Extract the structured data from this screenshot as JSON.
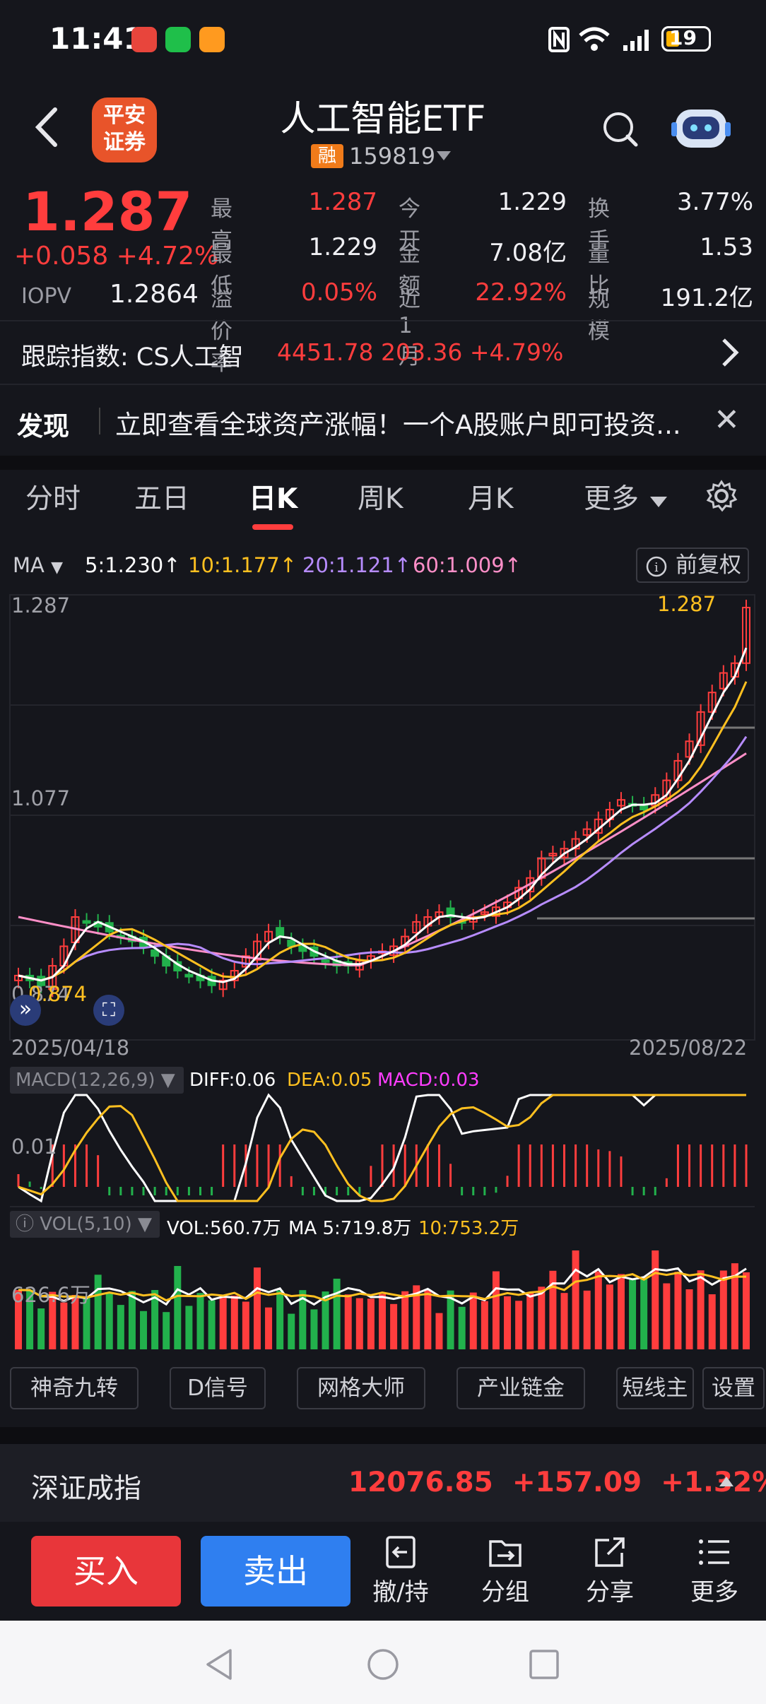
{
  "status": {
    "time": "11:41",
    "battery": "19"
  },
  "header": {
    "title": "人工智能ETF",
    "code": "159819",
    "rong": "融",
    "logo_line1": "平安",
    "logo_line2": "证券"
  },
  "quote": {
    "price": "1.287",
    "change": "+0.058",
    "change_pct": "+4.72%",
    "iopv_label": "IOPV",
    "iopv": "1.2864",
    "grid": [
      {
        "l1": "最高",
        "v1": "1.287",
        "l2": "今开",
        "v2": "1.229",
        "l3": "换手",
        "v3": "3.77%"
      },
      {
        "l1": "最低",
        "v1": "1.229",
        "l2": "金额",
        "v2": "7.08亿",
        "l3": "量比",
        "v3": "1.53"
      },
      {
        "l1": "溢价率",
        "v1": "0.05%",
        "l2": "近1月",
        "v2": "22.92%",
        "l3": "规模",
        "v3": "191.2亿"
      }
    ]
  },
  "tracking": {
    "label": "跟踪指数: CS人工智",
    "value": "4451.78  203.36  +4.79%"
  },
  "news": {
    "tag": "发现",
    "text": "立即查看全球资产涨幅！一个A股账户即可投资..."
  },
  "tabs": [
    "分时",
    "五日",
    "日K",
    "周K",
    "月K",
    "更多"
  ],
  "active_tab": "日K",
  "ma": {
    "toggle": "MA",
    "ma5": "5:1.230↑",
    "ma10": "10:1.177↑",
    "ma20": "20:1.121↑",
    "ma60": "60:1.009↑",
    "fq": "前复权"
  },
  "colors": {
    "up": "#ff3d3d",
    "down": "#22b14c",
    "ma5": "#ffffff",
    "ma10": "#ffc020",
    "ma20": "#b78cff",
    "ma60": "#ff8fc8",
    "buy": "#e8363a",
    "sell": "#2f7ff0"
  },
  "chart_data": {
    "type": "candlestick",
    "x_start": "2025/04/18",
    "x_end": "2025/08/22",
    "y_high_label": "1.287",
    "y_mid_label": "1.077",
    "y_low_label": "0.874",
    "price_max_label": "1.287",
    "price_min_label": "0.874",
    "closes": [
      0.91,
      0.905,
      0.9,
      0.92,
      0.94,
      0.97,
      0.965,
      0.96,
      0.955,
      0.95,
      0.945,
      0.94,
      0.93,
      0.92,
      0.915,
      0.91,
      0.905,
      0.9,
      0.905,
      0.915,
      0.93,
      0.945,
      0.955,
      0.95,
      0.94,
      0.935,
      0.93,
      0.925,
      0.92,
      0.92,
      0.925,
      0.93,
      0.935,
      0.94,
      0.95,
      0.965,
      0.97,
      0.975,
      0.97,
      0.965,
      0.97,
      0.975,
      0.98,
      0.985,
      1.0,
      1.01,
      1.03,
      1.035,
      1.04,
      1.05,
      1.06,
      1.07,
      1.08,
      1.09,
      1.085,
      1.08,
      1.095,
      1.11,
      1.13,
      1.15,
      1.18,
      1.2,
      1.22,
      1.23,
      1.287
    ],
    "macd_label": "MACD(12,26,9)",
    "diff": "DIFF:0.06",
    "dea": "DEA:0.05",
    "macd": "MACD:0.03",
    "macd_axis": "0.01",
    "vol_label": "VOL(5,10)",
    "vol": "VOL:560.7万",
    "vol_ma5": "MA 5:719.8万",
    "vol_ma10": "10:753.2万",
    "vol_axis": "626.6万"
  },
  "tools": [
    "神奇九转",
    "D信号",
    "网格大师",
    "产业链金",
    "短线主",
    "设置"
  ],
  "index": {
    "name": "深证成指",
    "value": "12076.85",
    "change": "+157.09",
    "pct": "+1.32%"
  },
  "trade": {
    "buy": "买入",
    "sell": "卖出",
    "actions": [
      "撤/持",
      "分组",
      "分享",
      "更多"
    ]
  }
}
